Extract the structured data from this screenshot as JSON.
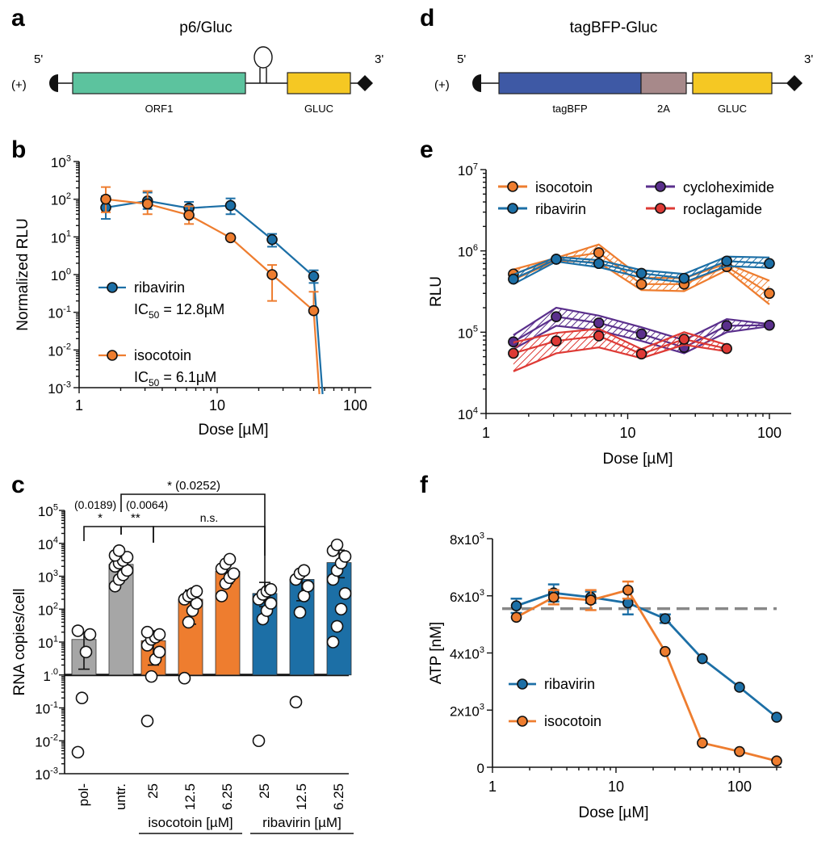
{
  "colors": {
    "orange": "#EE7D2F",
    "blue": "#1C6FA6",
    "purple": "#5A2F8C",
    "red": "#DE3A35",
    "gray": "#A6A6A6",
    "teal": "#5CC39E",
    "yellow": "#F5C823",
    "navy": "#3E59A5",
    "mauve": "#A7898A",
    "dashed": "#888888"
  },
  "panels": {
    "a": "a",
    "b": "b",
    "c": "c",
    "d": "d",
    "e": "e",
    "f": "f"
  },
  "chart_data": [
    {
      "id": "a",
      "type": "diagram",
      "title": "p6/Gluc",
      "five_prime": "5'",
      "three_prime": "3'",
      "strand": "(+)",
      "blocks": [
        {
          "label": "ORF1",
          "color": "#5CC39E"
        },
        {
          "label": "GLUC",
          "color": "#F5C823"
        }
      ]
    },
    {
      "id": "b",
      "type": "line",
      "xscale": "log",
      "yscale": "log",
      "xlabel": "Dose [µM]",
      "ylabel": "Normalized RLU",
      "xlim": [
        1,
        100
      ],
      "ylim": [
        0.001,
        1000
      ],
      "xticks": [
        "1",
        "10",
        "100"
      ],
      "yticks": [
        {
          "base": "10",
          "exp": "3"
        },
        {
          "base": "10",
          "exp": "2"
        },
        {
          "base": "10",
          "exp": "1"
        },
        {
          "base": "10",
          "exp": "0"
        },
        {
          "base": "10",
          "exp": "-1"
        },
        {
          "base": "10",
          "exp": "-2"
        },
        {
          "base": "10",
          "exp": "-3"
        }
      ],
      "series": [
        {
          "name": "ribavirin",
          "ic50_label": "IC",
          "ic50_sub": "50",
          "ic50_value": " = 12.8µM",
          "color": "#1C6FA6",
          "x": [
            1.56,
            3.13,
            6.25,
            12.5,
            25,
            50
          ],
          "y": [
            60,
            90,
            58,
            68,
            8.5,
            0.9
          ],
          "err": [
            [
              30,
              120
            ],
            [
              55,
              150
            ],
            [
              38,
              85
            ],
            [
              40,
              105
            ],
            [
              5.5,
              12
            ],
            [
              0.6,
              1.3
            ]
          ],
          "drop_to": 58
        },
        {
          "name": "isocotoin",
          "ic50_label": "IC",
          "ic50_sub": "50",
          "ic50_value": " = 6.1µM",
          "color": "#EE7D2F",
          "x": [
            1.56,
            3.13,
            6.25,
            12.5,
            25,
            50
          ],
          "y": [
            100,
            75,
            38,
            9.5,
            1.0,
            0.11
          ],
          "err": [
            [
              45,
              210
            ],
            [
              40,
              165
            ],
            [
              22,
              65
            ],
            [
              9.5,
              9.5
            ],
            [
              0.2,
              1.8
            ],
            [
              0.11,
              0.35
            ]
          ],
          "drop_to": 55
        }
      ]
    },
    {
      "id": "c",
      "type": "bar",
      "yscale": "log",
      "ylabel": "RNA copies/cell",
      "ylim": [
        0.001,
        100000
      ],
      "yticks": [
        {
          "base": "10",
          "exp": "5"
        },
        {
          "base": "10",
          "exp": "4"
        },
        {
          "base": "10",
          "exp": "3"
        },
        {
          "base": "10",
          "exp": "2"
        },
        {
          "base": "10",
          "exp": "1"
        },
        {
          "base": "1",
          "exp": ".0"
        },
        {
          "base": "10",
          "exp": "-1"
        },
        {
          "base": "10",
          "exp": "-2"
        },
        {
          "base": "10",
          "exp": "-3"
        }
      ],
      "categories": [
        "pol-",
        "untr.",
        "25",
        "12.5",
        "6.25",
        "25",
        "12.5",
        "6.25"
      ],
      "bar_colors": [
        "#A6A6A6",
        "#A6A6A6",
        "#EE7D2F",
        "#EE7D2F",
        "#EE7D2F",
        "#1C6FA6",
        "#1C6FA6",
        "#1C6FA6"
      ],
      "values": [
        12,
        2300,
        11,
        200,
        1400,
        300,
        800,
        2600
      ],
      "err": [
        [
          1.5,
          20
        ],
        [
          1000,
          4200
        ],
        [
          2.0,
          22
        ],
        [
          35,
          380
        ],
        [
          600,
          2600
        ],
        [
          120,
          650
        ],
        [
          180,
          1600
        ],
        [
          900,
          6200
        ]
      ],
      "points": [
        [
          0.0045,
          0.2,
          5,
          17,
          22
        ],
        [
          500,
          800,
          1100,
          1500,
          2000,
          2500,
          3000,
          3800,
          4300,
          6000
        ],
        [
          0.04,
          0.9,
          3,
          5,
          8,
          12,
          14,
          17,
          20
        ],
        [
          0.8,
          40,
          90,
          150,
          200,
          250,
          300,
          350
        ],
        [
          250,
          600,
          900,
          1200,
          1700,
          2400,
          3300
        ],
        [
          0.01,
          50,
          90,
          150,
          200,
          280,
          350,
          400
        ],
        [
          0.15,
          80,
          250,
          500,
          800,
          1200,
          1500
        ],
        [
          10,
          30,
          100,
          300,
          800,
          1500,
          2500,
          4000,
          6000,
          9000
        ]
      ],
      "group_labels": [
        "isocotoin [µM]",
        "ribavirin [µM]"
      ],
      "comparisons": [
        {
          "label": "*",
          "p": "(0.0189)"
        },
        {
          "label": "**",
          "p": "(0.0064)"
        },
        {
          "label": "n.s."
        },
        {
          "label": "* (0.0252)"
        }
      ]
    },
    {
      "id": "d",
      "type": "diagram",
      "title": "tagBFP-Gluc",
      "five_prime": "5'",
      "three_prime": "3'",
      "strand": "(+)",
      "blocks": [
        {
          "label": "tagBFP",
          "color": "#3E59A5"
        },
        {
          "label": "2A",
          "color": "#A7898A"
        },
        {
          "label": "GLUC",
          "color": "#F5C823"
        }
      ]
    },
    {
      "id": "e",
      "type": "line",
      "xscale": "log",
      "yscale": "log",
      "xlabel": "Dose [µM]",
      "ylabel": "RLU",
      "xlim": [
        1,
        110
      ],
      "ylim": [
        10000,
        10000000
      ],
      "xticks": [
        "1",
        "10",
        "100"
      ],
      "yticks": [
        {
          "base": "10",
          "exp": "7"
        },
        {
          "base": "10",
          "exp": "6"
        },
        {
          "base": "10",
          "exp": "5"
        },
        {
          "base": "10",
          "exp": "4"
        }
      ],
      "series": [
        {
          "name": "isocotoin",
          "color": "#EE7D2F",
          "x": [
            1.56,
            3.13,
            6.25,
            12.5,
            25,
            50,
            100
          ],
          "y": [
            520000,
            790000,
            950000,
            390000,
            390000,
            640000,
            300000
          ],
          "lo": [
            440000,
            760000,
            720000,
            330000,
            320000,
            580000,
            220000
          ],
          "hi": [
            590000,
            820000,
            1200000,
            470000,
            460000,
            700000,
            430000
          ]
        },
        {
          "name": "ribavirin",
          "color": "#1C6FA6",
          "x": [
            1.56,
            3.13,
            6.25,
            12.5,
            25,
            50,
            100
          ],
          "y": [
            450000,
            790000,
            700000,
            530000,
            460000,
            750000,
            700000
          ],
          "lo": [
            390000,
            740000,
            630000,
            470000,
            410000,
            650000,
            620000
          ],
          "hi": [
            510000,
            840000,
            770000,
            580000,
            520000,
            850000,
            830000
          ]
        },
        {
          "name": "cycloheximide",
          "color": "#5A2F8C",
          "x": [
            1.56,
            3.13,
            6.25,
            12.5,
            25,
            50,
            100
          ],
          "y": [
            76000,
            155000,
            130000,
            95000,
            65000,
            120000,
            122000
          ],
          "lo": [
            62000,
            120000,
            105000,
            78000,
            55000,
            100000,
            118000
          ],
          "hi": [
            92000,
            200000,
            160000,
            115000,
            80000,
            145000,
            126000
          ]
        },
        {
          "name": "roclagamide",
          "color": "#DE3A35",
          "x": [
            1.56,
            3.13,
            6.25,
            12.5,
            25,
            50
          ],
          "y": [
            55000,
            78000,
            90000,
            54000,
            82000,
            63000
          ],
          "lo": [
            33000,
            55000,
            65000,
            48000,
            70000,
            58000
          ],
          "hi": [
            75000,
            98000,
            110000,
            62000,
            100000,
            70000
          ]
        }
      ]
    },
    {
      "id": "f",
      "type": "line",
      "xscale": "log",
      "xlabel": "Dose [µM]",
      "ylabel": "ATP [nM]",
      "xlim": [
        1,
        200
      ],
      "ylim": [
        0,
        8000
      ],
      "xticks": [
        "1",
        "10",
        "100"
      ],
      "yticks": [
        {
          "base": "8x10",
          "exp": "3"
        },
        {
          "base": "6x10",
          "exp": "3"
        },
        {
          "base": "4x10",
          "exp": "3"
        },
        {
          "base": "2x10",
          "exp": "3"
        },
        {
          "base": "0",
          "exp": ""
        }
      ],
      "baseline": 5550,
      "series": [
        {
          "name": "ribavirin",
          "color": "#1C6FA6",
          "x": [
            1.56,
            3.13,
            6.25,
            12.5,
            25,
            50,
            100,
            200
          ],
          "y": [
            5650,
            6100,
            5950,
            5750,
            5200,
            3800,
            2800,
            1750
          ],
          "err": [
            250,
            300,
            200,
            400,
            150,
            0,
            0,
            0
          ]
        },
        {
          "name": "isocotoin",
          "color": "#EE7D2F",
          "x": [
            1.56,
            3.13,
            6.25,
            12.5,
            25,
            50,
            100,
            200
          ],
          "y": [
            5250,
            5950,
            5850,
            6200,
            4050,
            850,
            550,
            220
          ],
          "err": [
            0,
            250,
            350,
            300,
            0,
            0,
            0,
            0
          ]
        }
      ]
    }
  ]
}
